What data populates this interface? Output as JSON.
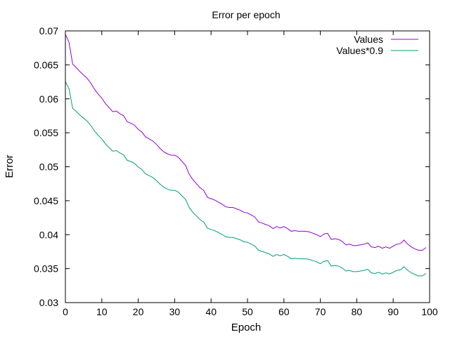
{
  "chart_data": {
    "type": "line",
    "title": "Error per epoch",
    "xlabel": "Epoch",
    "ylabel": "Error",
    "xlim": [
      0,
      100
    ],
    "ylim": [
      0.03,
      0.07
    ],
    "xticks": [
      0,
      10,
      20,
      30,
      40,
      50,
      60,
      70,
      80,
      90,
      100
    ],
    "yticks": [
      0.03,
      0.035,
      0.04,
      0.045,
      0.05,
      0.055,
      0.06,
      0.065,
      0.07
    ],
    "ytick_labels": [
      "0.03",
      "0.035",
      "0.04",
      "0.045",
      "0.05",
      "0.055",
      "0.06",
      "0.065",
      "0.07"
    ],
    "grid": false,
    "legend_position": "top-right",
    "series": [
      {
        "name": "Values",
        "color": "#9400d3",
        "x": [
          0,
          1,
          2,
          3,
          4,
          5,
          6,
          7,
          8,
          9,
          10,
          11,
          12,
          13,
          14,
          15,
          16,
          17,
          18,
          19,
          20,
          21,
          22,
          23,
          24,
          25,
          26,
          27,
          28,
          29,
          30,
          31,
          32,
          33,
          34,
          35,
          36,
          37,
          38,
          39,
          40,
          41,
          42,
          43,
          44,
          45,
          46,
          47,
          48,
          49,
          50,
          51,
          52,
          53,
          54,
          55,
          56,
          57,
          58,
          59,
          60,
          61,
          62,
          63,
          64,
          65,
          66,
          67,
          68,
          69,
          70,
          71,
          72,
          73,
          74,
          75,
          76,
          77,
          78,
          79,
          80,
          81,
          82,
          83,
          84,
          85,
          86,
          87,
          88,
          89,
          90,
          91,
          92,
          93,
          94,
          95,
          96,
          97,
          98,
          99
        ],
        "values": [
          0.0695,
          0.0683,
          0.0651,
          0.0646,
          0.064,
          0.0635,
          0.063,
          0.0623,
          0.0614,
          0.0607,
          0.0601,
          0.0593,
          0.0587,
          0.0581,
          0.0582,
          0.0578,
          0.0575,
          0.0566,
          0.0564,
          0.0561,
          0.0555,
          0.0551,
          0.0544,
          0.0541,
          0.0538,
          0.0533,
          0.0527,
          0.0522,
          0.0519,
          0.0517,
          0.0517,
          0.0514,
          0.0508,
          0.0502,
          0.0489,
          0.0481,
          0.0475,
          0.0469,
          0.0465,
          0.0455,
          0.0453,
          0.0451,
          0.0448,
          0.0445,
          0.0441,
          0.044,
          0.044,
          0.0438,
          0.0436,
          0.0433,
          0.0432,
          0.0429,
          0.0426,
          0.0419,
          0.0417,
          0.0415,
          0.0413,
          0.0409,
          0.0412,
          0.041,
          0.0412,
          0.0409,
          0.0405,
          0.0406,
          0.0405,
          0.0405,
          0.0405,
          0.0404,
          0.0402,
          0.04,
          0.0397,
          0.0401,
          0.0402,
          0.0393,
          0.0394,
          0.0393,
          0.039,
          0.0385,
          0.0386,
          0.0384,
          0.0384,
          0.0385,
          0.0386,
          0.0388,
          0.0382,
          0.0381,
          0.0383,
          0.038,
          0.0382,
          0.038,
          0.0383,
          0.0386,
          0.0387,
          0.0392,
          0.0386,
          0.0382,
          0.0379,
          0.0377,
          0.0377,
          0.0381
        ]
      },
      {
        "name": "Values*0.9",
        "color": "#009e73",
        "x": [
          0,
          1,
          2,
          3,
          4,
          5,
          6,
          7,
          8,
          9,
          10,
          11,
          12,
          13,
          14,
          15,
          16,
          17,
          18,
          19,
          20,
          21,
          22,
          23,
          24,
          25,
          26,
          27,
          28,
          29,
          30,
          31,
          32,
          33,
          34,
          35,
          36,
          37,
          38,
          39,
          40,
          41,
          42,
          43,
          44,
          45,
          46,
          47,
          48,
          49,
          50,
          51,
          52,
          53,
          54,
          55,
          56,
          57,
          58,
          59,
          60,
          61,
          62,
          63,
          64,
          65,
          66,
          67,
          68,
          69,
          70,
          71,
          72,
          73,
          74,
          75,
          76,
          77,
          78,
          79,
          80,
          81,
          82,
          83,
          84,
          85,
          86,
          87,
          88,
          89,
          90,
          91,
          92,
          93,
          94,
          95,
          96,
          97,
          98,
          99
        ],
        "values": [
          0.06255,
          0.06147,
          0.05859,
          0.05814,
          0.0576,
          0.05715,
          0.0567,
          0.05607,
          0.05526,
          0.05463,
          0.05409,
          0.05337,
          0.05283,
          0.05229,
          0.05238,
          0.05202,
          0.05175,
          0.05094,
          0.05076,
          0.05049,
          0.04995,
          0.04959,
          0.04896,
          0.04869,
          0.04842,
          0.04797,
          0.04743,
          0.04698,
          0.04671,
          0.04653,
          0.04653,
          0.04626,
          0.04572,
          0.04518,
          0.04401,
          0.04329,
          0.04275,
          0.04221,
          0.04185,
          0.04095,
          0.04077,
          0.04059,
          0.04032,
          0.04005,
          0.03969,
          0.0396,
          0.0396,
          0.03942,
          0.03924,
          0.03897,
          0.03888,
          0.03861,
          0.03834,
          0.03771,
          0.03753,
          0.03735,
          0.03717,
          0.03681,
          0.03708,
          0.0369,
          0.03708,
          0.03681,
          0.03645,
          0.03654,
          0.03645,
          0.03645,
          0.03645,
          0.03636,
          0.03618,
          0.036,
          0.03573,
          0.03609,
          0.03618,
          0.03537,
          0.03546,
          0.03537,
          0.0351,
          0.03465,
          0.03474,
          0.03456,
          0.03456,
          0.03465,
          0.03474,
          0.03492,
          0.03438,
          0.03429,
          0.03447,
          0.0342,
          0.03438,
          0.0342,
          0.03447,
          0.03474,
          0.03483,
          0.03528,
          0.03474,
          0.03438,
          0.03411,
          0.03393,
          0.03393,
          0.03429
        ]
      }
    ]
  }
}
